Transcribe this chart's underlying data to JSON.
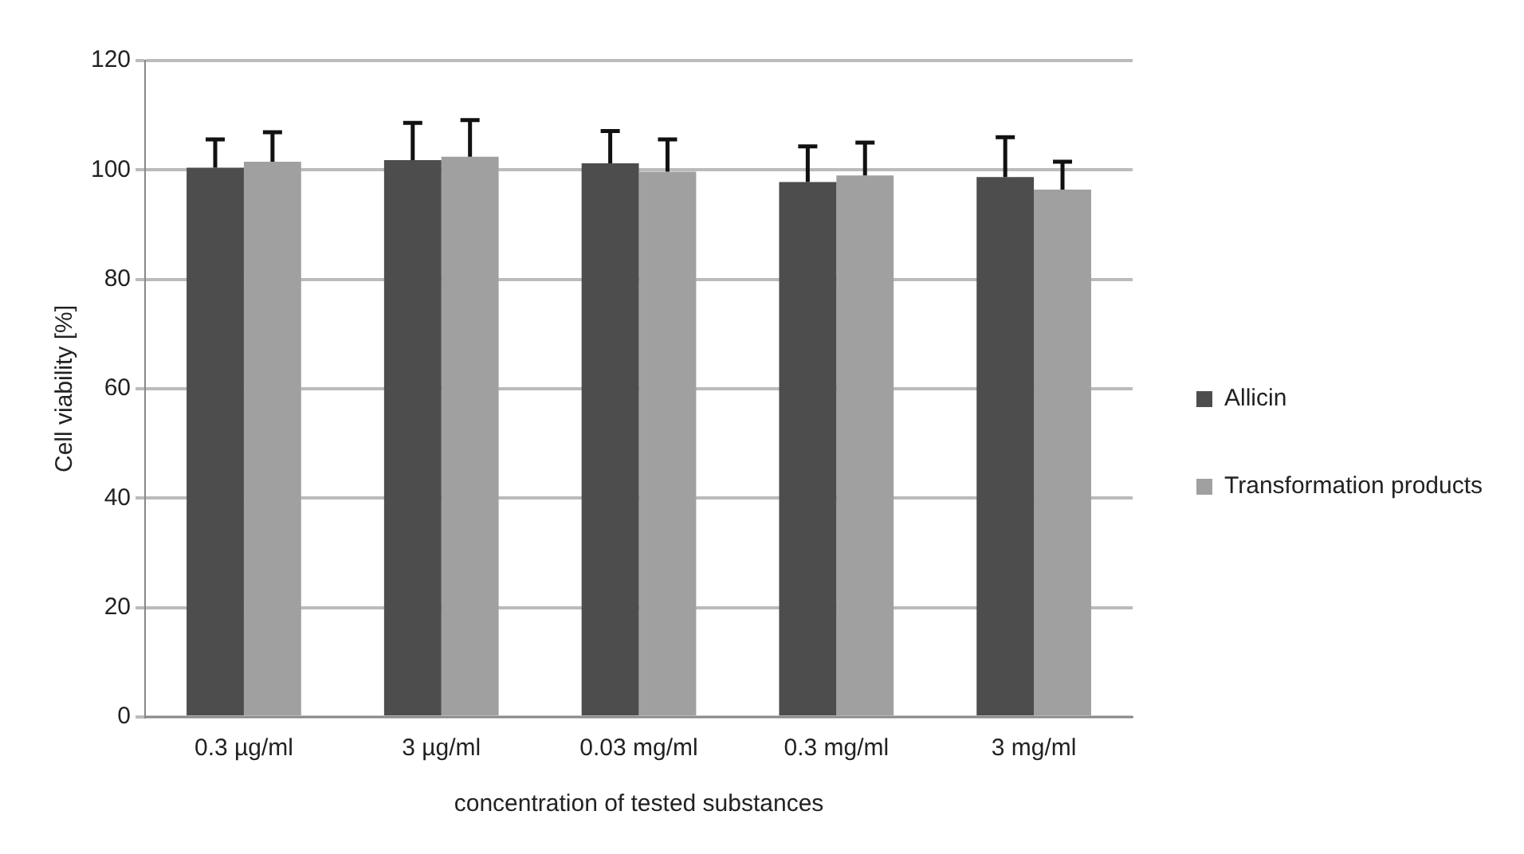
{
  "chart_data": {
    "type": "bar",
    "xlabel": "concentration of tested substances",
    "ylabel": "Cell viability [%]",
    "categories": [
      "0.3 µg/ml",
      "3 µg/ml",
      "0.03 mg/ml",
      "0.3 mg/ml",
      "3 mg/ml"
    ],
    "series": [
      {
        "name": "Allicin",
        "color": "#4d4d4d",
        "values": [
          100.4,
          101.8,
          101.2,
          97.8,
          98.7
        ],
        "errors": [
          [
            100.4,
            105.6
          ],
          [
            101.8,
            108.6
          ],
          [
            101.2,
            107.1
          ],
          [
            97.8,
            104.3
          ],
          [
            98.7,
            106
          ]
        ]
      },
      {
        "name": "Transformation products",
        "color": "#a0a0a0",
        "values": [
          101.5,
          102.4,
          99.7,
          99,
          96.4
        ],
        "errors": [
          [
            101.5,
            106.9
          ],
          [
            102.4,
            109.1
          ],
          [
            99.7,
            105.6
          ],
          [
            99,
            105
          ],
          [
            96.4,
            101.5
          ]
        ]
      }
    ],
    "ylim": [
      0,
      120
    ],
    "yticks": [
      0,
      20,
      40,
      60,
      80,
      100,
      120
    ],
    "grid": "y",
    "legend": "right"
  }
}
